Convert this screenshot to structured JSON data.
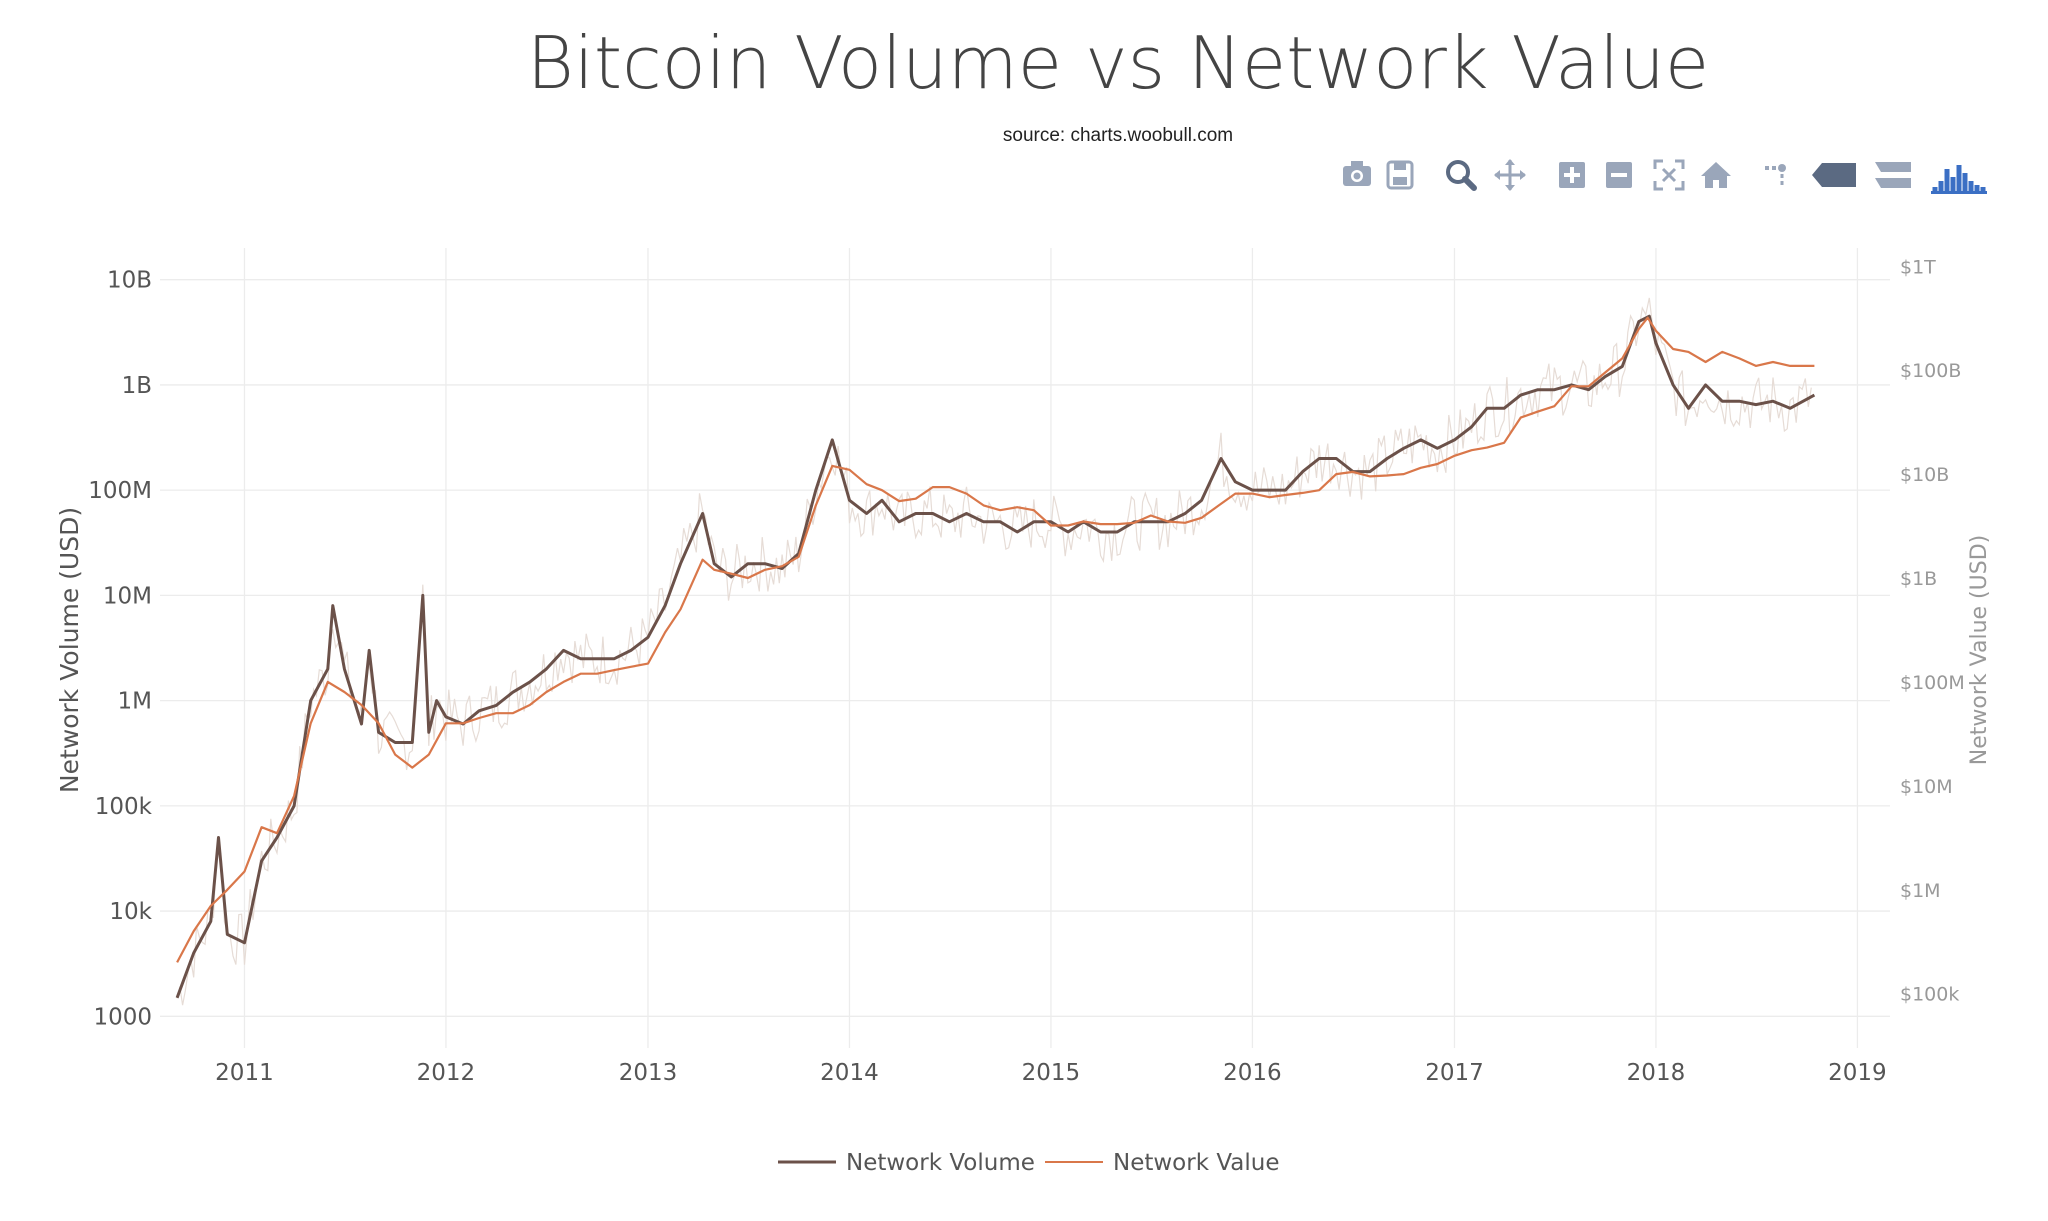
{
  "title": "Bitcoin Volume vs Network Value",
  "subtitle": "source: charts.woobull.com",
  "modebar": [
    {
      "name": "camera-icon",
      "label": "Download plot as a png"
    },
    {
      "name": "save-icon",
      "label": "Save and edit plot in cloud"
    },
    {
      "name": "zoom-icon",
      "label": "Zoom"
    },
    {
      "name": "pan-icon",
      "label": "Pan"
    },
    {
      "name": "zoom-in-icon",
      "label": "Zoom in"
    },
    {
      "name": "zoom-out-icon",
      "label": "Zoom out"
    },
    {
      "name": "autoscale-icon",
      "label": "Autoscale"
    },
    {
      "name": "home-icon",
      "label": "Reset axes"
    },
    {
      "name": "spike-lines-icon",
      "label": "Toggle Spike Lines"
    },
    {
      "name": "hover-closest-icon",
      "label": "Show closest data on hover"
    },
    {
      "name": "hover-compare-icon",
      "label": "Compare data on hover"
    },
    {
      "name": "plotly-logo-icon",
      "label": "Produced with Plotly"
    }
  ],
  "colors": {
    "volume": "#6b5149",
    "value": "#d9774a",
    "volume_raw": "#e6dcd6",
    "modebar": "#9aa6ba",
    "modebar_active": "#5b6a82",
    "logo": "#3b6fc4"
  },
  "chart_data": {
    "type": "line",
    "title": "Bitcoin Volume vs Network Value",
    "subtitle": "source: charts.woobull.com",
    "x_axis": {
      "type": "date",
      "range": [
        "2010-08-01",
        "2019-03-01"
      ],
      "tick_labels": [
        "2011",
        "2012",
        "2013",
        "2014",
        "2015",
        "2016",
        "2017",
        "2018",
        "2019"
      ],
      "grid": true
    },
    "y_axis_left": {
      "title": "Network Volume (USD)",
      "type": "log",
      "range": [
        500,
        20000000000
      ],
      "tick_values": [
        1000,
        10000,
        100000,
        1000000,
        10000000,
        100000000,
        1000000000,
        10000000000
      ],
      "tick_labels": [
        "1000",
        "10k",
        "100k",
        "1M",
        "10M",
        "100M",
        "1B",
        "10B"
      ],
      "grid": true
    },
    "y_axis_right": {
      "title": "Network Value (USD)",
      "type": "log",
      "range": [
        30000,
        1500000000000
      ],
      "tick_values": [
        100000,
        1000000,
        10000000,
        100000000,
        1000000000,
        10000000000,
        100000000000,
        1000000000000
      ],
      "tick_labels": [
        "$100k",
        "$1M",
        "$10M",
        "$100M",
        "$1B",
        "$10B",
        "$100B",
        "$1T"
      ]
    },
    "legend": {
      "position": "bottom-center"
    },
    "series": [
      {
        "name": "Network Volume",
        "axis": "left",
        "x": [
          "2010-09-01",
          "2010-10-01",
          "2010-11-01",
          "2010-11-15",
          "2010-12-01",
          "2011-01-01",
          "2011-02-01",
          "2011-03-01",
          "2011-04-01",
          "2011-05-01",
          "2011-06-01",
          "2011-06-10",
          "2011-07-01",
          "2011-08-01",
          "2011-08-15",
          "2011-09-01",
          "2011-10-01",
          "2011-11-01",
          "2011-11-20",
          "2011-12-01",
          "2011-12-15",
          "2012-01-01",
          "2012-02-01",
          "2012-03-01",
          "2012-04-01",
          "2012-05-01",
          "2012-06-01",
          "2012-07-01",
          "2012-08-01",
          "2012-09-01",
          "2012-10-01",
          "2012-11-01",
          "2012-12-01",
          "2013-01-01",
          "2013-02-01",
          "2013-03-01",
          "2013-04-10",
          "2013-05-01",
          "2013-06-01",
          "2013-07-01",
          "2013-08-01",
          "2013-09-01",
          "2013-10-01",
          "2013-11-01",
          "2013-12-01",
          "2014-01-01",
          "2014-02-01",
          "2014-03-01",
          "2014-04-01",
          "2014-05-01",
          "2014-06-01",
          "2014-07-01",
          "2014-08-01",
          "2014-09-01",
          "2014-10-01",
          "2014-11-01",
          "2014-12-01",
          "2015-01-01",
          "2015-02-01",
          "2015-03-01",
          "2015-04-01",
          "2015-05-01",
          "2015-06-01",
          "2015-07-01",
          "2015-08-01",
          "2015-09-01",
          "2015-10-01",
          "2015-11-05",
          "2015-12-01",
          "2016-01-01",
          "2016-02-01",
          "2016-03-01",
          "2016-04-01",
          "2016-05-01",
          "2016-06-01",
          "2016-07-01",
          "2016-08-01",
          "2016-09-01",
          "2016-10-01",
          "2016-11-01",
          "2016-12-01",
          "2017-01-01",
          "2017-02-01",
          "2017-03-01",
          "2017-04-01",
          "2017-05-01",
          "2017-06-01",
          "2017-07-01",
          "2017-08-01",
          "2017-09-01",
          "2017-10-01",
          "2017-11-01",
          "2017-12-01",
          "2017-12-20",
          "2018-01-01",
          "2018-02-01",
          "2018-03-01",
          "2018-04-01",
          "2018-05-01",
          "2018-06-01",
          "2018-07-01",
          "2018-08-01",
          "2018-09-01",
          "2018-10-15"
        ],
        "y": [
          1500,
          4000,
          8000,
          50000,
          6000,
          5000,
          30000,
          50000,
          100000,
          1000000,
          2000000,
          8000000,
          2000000,
          600000,
          3000000,
          500000,
          400000,
          400000,
          10000000,
          500000,
          1000000,
          700000,
          600000,
          800000,
          900000,
          1200000,
          1500000,
          2000000,
          3000000,
          2500000,
          2500000,
          2500000,
          3000000,
          4000000,
          8000000,
          20000000,
          60000000,
          20000000,
          15000000,
          20000000,
          20000000,
          18000000,
          25000000,
          100000000,
          300000000,
          80000000,
          60000000,
          80000000,
          50000000,
          60000000,
          60000000,
          50000000,
          60000000,
          50000000,
          50000000,
          40000000,
          50000000,
          50000000,
          40000000,
          50000000,
          40000000,
          40000000,
          50000000,
          50000000,
          50000000,
          60000000,
          80000000,
          200000000,
          120000000,
          100000000,
          100000000,
          100000000,
          150000000,
          200000000,
          200000000,
          150000000,
          150000000,
          200000000,
          250000000,
          300000000,
          250000000,
          300000000,
          400000000,
          600000000,
          600000000,
          800000000,
          900000000,
          900000000,
          1000000000,
          900000000,
          1200000000,
          1500000000,
          4000000000,
          4500000000,
          2500000000,
          1000000000,
          600000000,
          1000000000,
          700000000,
          700000000,
          650000000,
          700000000,
          600000000,
          800000000
        ]
      },
      {
        "name": "Network Value",
        "axis": "right",
        "x": [
          "2010-09-01",
          "2010-10-01",
          "2010-11-01",
          "2010-12-01",
          "2011-01-01",
          "2011-02-01",
          "2011-03-01",
          "2011-04-01",
          "2011-05-01",
          "2011-06-01",
          "2011-07-01",
          "2011-08-01",
          "2011-09-01",
          "2011-10-01",
          "2011-11-01",
          "2011-12-01",
          "2012-01-01",
          "2012-02-01",
          "2012-03-01",
          "2012-04-01",
          "2012-05-01",
          "2012-06-01",
          "2012-07-01",
          "2012-08-01",
          "2012-09-01",
          "2012-10-01",
          "2012-11-01",
          "2012-12-01",
          "2013-01-01",
          "2013-02-01",
          "2013-03-01",
          "2013-04-10",
          "2013-05-01",
          "2013-06-01",
          "2013-07-01",
          "2013-08-01",
          "2013-09-01",
          "2013-10-01",
          "2013-11-01",
          "2013-12-01",
          "2014-01-01",
          "2014-02-01",
          "2014-03-01",
          "2014-04-01",
          "2014-05-01",
          "2014-06-01",
          "2014-07-01",
          "2014-08-01",
          "2014-09-01",
          "2014-10-01",
          "2014-11-01",
          "2014-12-01",
          "2015-01-01",
          "2015-02-01",
          "2015-03-01",
          "2015-04-01",
          "2015-05-01",
          "2015-06-01",
          "2015-07-01",
          "2015-08-01",
          "2015-09-01",
          "2015-10-01",
          "2015-11-01",
          "2015-12-01",
          "2016-01-01",
          "2016-02-01",
          "2016-03-01",
          "2016-04-01",
          "2016-05-01",
          "2016-06-01",
          "2016-07-01",
          "2016-08-01",
          "2016-09-01",
          "2016-10-01",
          "2016-11-01",
          "2016-12-01",
          "2017-01-01",
          "2017-02-01",
          "2017-03-01",
          "2017-04-01",
          "2017-05-01",
          "2017-06-01",
          "2017-07-01",
          "2017-08-01",
          "2017-09-01",
          "2017-10-01",
          "2017-11-01",
          "2017-12-01",
          "2017-12-17",
          "2018-01-01",
          "2018-02-01",
          "2018-03-01",
          "2018-04-01",
          "2018-05-01",
          "2018-06-01",
          "2018-07-01",
          "2018-08-01",
          "2018-09-01",
          "2018-10-15"
        ],
        "y": [
          200000,
          400000,
          700000,
          1000000,
          1500000,
          4000000,
          3500000,
          8000000,
          40000000,
          100000000,
          80000000,
          60000000,
          40000000,
          20000000,
          15000000,
          20000000,
          40000000,
          40000000,
          45000000,
          50000000,
          50000000,
          60000000,
          80000000,
          100000000,
          120000000,
          120000000,
          130000000,
          140000000,
          150000000,
          300000000,
          500000000,
          1500000000,
          1200000000,
          1100000000,
          1000000000,
          1200000000,
          1300000000,
          1600000000,
          5000000000,
          12000000000,
          11000000000,
          8000000000,
          7000000000,
          5500000000,
          5800000000,
          7500000000,
          7500000000,
          6500000000,
          5000000000,
          4500000000,
          4800000000,
          4500000000,
          3200000000,
          3200000000,
          3500000000,
          3300000000,
          3300000000,
          3400000000,
          4000000000,
          3500000000,
          3400000000,
          3800000000,
          5000000000,
          6500000000,
          6500000000,
          6000000000,
          6300000000,
          6600000000,
          7000000000,
          10000000000,
          10500000000,
          9500000000,
          9700000000,
          10000000000,
          11500000000,
          12500000000,
          15000000000,
          17000000000,
          18000000000,
          20000000000,
          35000000000,
          40000000000,
          45000000000,
          70000000000,
          70000000000,
          95000000000,
          130000000000,
          250000000000,
          320000000000,
          240000000000,
          160000000000,
          150000000000,
          120000000000,
          150000000000,
          130000000000,
          110000000000,
          120000000000,
          110000000000,
          110000000000
        ]
      }
    ]
  }
}
